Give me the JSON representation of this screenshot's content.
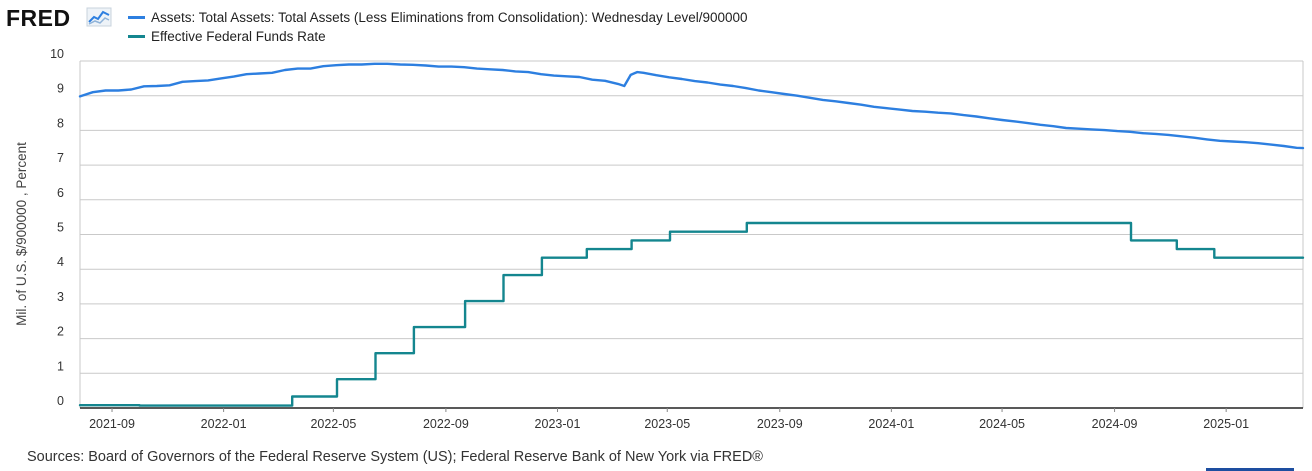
{
  "header": {
    "logo_text": "FRED",
    "logo_icon": "fred-graph-icon"
  },
  "legend": [
    {
      "label": "Assets: Total Assets: Total Assets (Less Eliminations from Consolidation): Wednesday Level/900000",
      "color": "#2d7fe0"
    },
    {
      "label": "Effective Federal Funds Rate",
      "color": "#14868f"
    }
  ],
  "source_text": "Sources: Board of Governors of the Federal Reserve System (US); Federal Reserve Bank of New York via FRED®",
  "chart_data": {
    "type": "line",
    "ylabel": "Mil. of U.S. $/900000 , Percent",
    "ylim": [
      0,
      10
    ],
    "yticks": [
      "0",
      "1",
      "2",
      "3",
      "4",
      "5",
      "6",
      "7",
      "8",
      "9",
      "10"
    ],
    "xlim": [
      "2021-07-28",
      "2025-03-26"
    ],
    "xticks": [
      "2021-09",
      "2022-01",
      "2022-05",
      "2022-09",
      "2023-01",
      "2023-05",
      "2023-09",
      "2024-01",
      "2024-05",
      "2024-09",
      "2025-01"
    ],
    "grid": true,
    "series": [
      {
        "name": "Assets: Total Assets: Total Assets (Less Eliminations from Consolidation): Wednesday Level/900000",
        "color": "#2d7fe0",
        "points": [
          [
            "2021-07-28",
            8.98
          ],
          [
            "2021-08-11",
            9.1
          ],
          [
            "2021-08-25",
            9.15
          ],
          [
            "2021-09-08",
            9.15
          ],
          [
            "2021-09-22",
            9.18
          ],
          [
            "2021-10-06",
            9.27
          ],
          [
            "2021-10-20",
            9.28
          ],
          [
            "2021-11-03",
            9.3
          ],
          [
            "2021-11-17",
            9.4
          ],
          [
            "2021-12-01",
            9.42
          ],
          [
            "2021-12-15",
            9.44
          ],
          [
            "2021-12-29",
            9.5
          ],
          [
            "2022-01-12",
            9.55
          ],
          [
            "2022-01-26",
            9.62
          ],
          [
            "2022-02-09",
            9.64
          ],
          [
            "2022-02-23",
            9.66
          ],
          [
            "2022-03-09",
            9.74
          ],
          [
            "2022-03-23",
            9.78
          ],
          [
            "2022-04-06",
            9.78
          ],
          [
            "2022-04-20",
            9.85
          ],
          [
            "2022-05-04",
            9.88
          ],
          [
            "2022-05-18",
            9.9
          ],
          [
            "2022-06-01",
            9.9
          ],
          [
            "2022-06-15",
            9.92
          ],
          [
            "2022-06-29",
            9.92
          ],
          [
            "2022-07-13",
            9.9
          ],
          [
            "2022-07-27",
            9.89
          ],
          [
            "2022-08-10",
            9.87
          ],
          [
            "2022-08-24",
            9.84
          ],
          [
            "2022-09-07",
            9.84
          ],
          [
            "2022-09-21",
            9.82
          ],
          [
            "2022-10-05",
            9.78
          ],
          [
            "2022-10-19",
            9.76
          ],
          [
            "2022-11-02",
            9.74
          ],
          [
            "2022-11-16",
            9.7
          ],
          [
            "2022-11-30",
            9.68
          ],
          [
            "2022-12-14",
            9.62
          ],
          [
            "2022-12-28",
            9.58
          ],
          [
            "2023-01-11",
            9.56
          ],
          [
            "2023-01-25",
            9.54
          ],
          [
            "2023-02-08",
            9.46
          ],
          [
            "2023-02-22",
            9.43
          ],
          [
            "2023-03-08",
            9.34
          ],
          [
            "2023-03-15",
            9.28
          ],
          [
            "2023-03-22",
            9.6
          ],
          [
            "2023-03-29",
            9.68
          ],
          [
            "2023-04-05",
            9.66
          ],
          [
            "2023-04-19",
            9.59
          ],
          [
            "2023-05-03",
            9.53
          ],
          [
            "2023-05-17",
            9.48
          ],
          [
            "2023-05-31",
            9.42
          ],
          [
            "2023-06-14",
            9.38
          ],
          [
            "2023-06-28",
            9.32
          ],
          [
            "2023-07-12",
            9.28
          ],
          [
            "2023-07-26",
            9.22
          ],
          [
            "2023-08-09",
            9.15
          ],
          [
            "2023-08-23",
            9.1
          ],
          [
            "2023-09-06",
            9.05
          ],
          [
            "2023-09-20",
            9.0
          ],
          [
            "2023-10-04",
            8.94
          ],
          [
            "2023-10-18",
            8.88
          ],
          [
            "2023-11-01",
            8.84
          ],
          [
            "2023-11-15",
            8.79
          ],
          [
            "2023-11-29",
            8.74
          ],
          [
            "2023-12-13",
            8.68
          ],
          [
            "2023-12-27",
            8.64
          ],
          [
            "2024-01-10",
            8.6
          ],
          [
            "2024-01-24",
            8.56
          ],
          [
            "2024-02-07",
            8.54
          ],
          [
            "2024-02-21",
            8.51
          ],
          [
            "2024-03-06",
            8.49
          ],
          [
            "2024-03-20",
            8.44
          ],
          [
            "2024-04-03",
            8.4
          ],
          [
            "2024-04-17",
            8.35
          ],
          [
            "2024-05-01",
            8.3
          ],
          [
            "2024-05-15",
            8.26
          ],
          [
            "2024-05-29",
            8.21
          ],
          [
            "2024-06-12",
            8.16
          ],
          [
            "2024-06-26",
            8.12
          ],
          [
            "2024-07-10",
            8.07
          ],
          [
            "2024-07-24",
            8.05
          ],
          [
            "2024-08-07",
            8.03
          ],
          [
            "2024-08-21",
            8.01
          ],
          [
            "2024-09-04",
            7.98
          ],
          [
            "2024-09-18",
            7.96
          ],
          [
            "2024-10-02",
            7.92
          ],
          [
            "2024-10-16",
            7.9
          ],
          [
            "2024-10-30",
            7.87
          ],
          [
            "2024-11-13",
            7.83
          ],
          [
            "2024-11-27",
            7.79
          ],
          [
            "2024-12-11",
            7.74
          ],
          [
            "2024-12-25",
            7.7
          ],
          [
            "2025-01-08",
            7.68
          ],
          [
            "2025-01-22",
            7.66
          ],
          [
            "2025-02-05",
            7.63
          ],
          [
            "2025-02-19",
            7.59
          ],
          [
            "2025-03-05",
            7.55
          ],
          [
            "2025-03-19",
            7.5
          ],
          [
            "2025-03-26",
            7.49
          ]
        ]
      },
      {
        "name": "Effective Federal Funds Rate",
        "color": "#14868f",
        "step": true,
        "points": [
          [
            "2021-07-28",
            0.08
          ],
          [
            "2021-10-01",
            0.07
          ],
          [
            "2022-03-17",
            0.33
          ],
          [
            "2022-05-05",
            0.83
          ],
          [
            "2022-06-16",
            1.58
          ],
          [
            "2022-07-28",
            2.33
          ],
          [
            "2022-09-22",
            3.08
          ],
          [
            "2022-11-03",
            3.83
          ],
          [
            "2022-12-15",
            4.33
          ],
          [
            "2023-02-02",
            4.58
          ],
          [
            "2023-03-23",
            4.83
          ],
          [
            "2023-05-04",
            5.08
          ],
          [
            "2023-07-27",
            5.33
          ],
          [
            "2024-09-19",
            4.83
          ],
          [
            "2024-11-08",
            4.58
          ],
          [
            "2024-12-19",
            4.33
          ],
          [
            "2025-03-26",
            4.33
          ]
        ]
      }
    ]
  }
}
